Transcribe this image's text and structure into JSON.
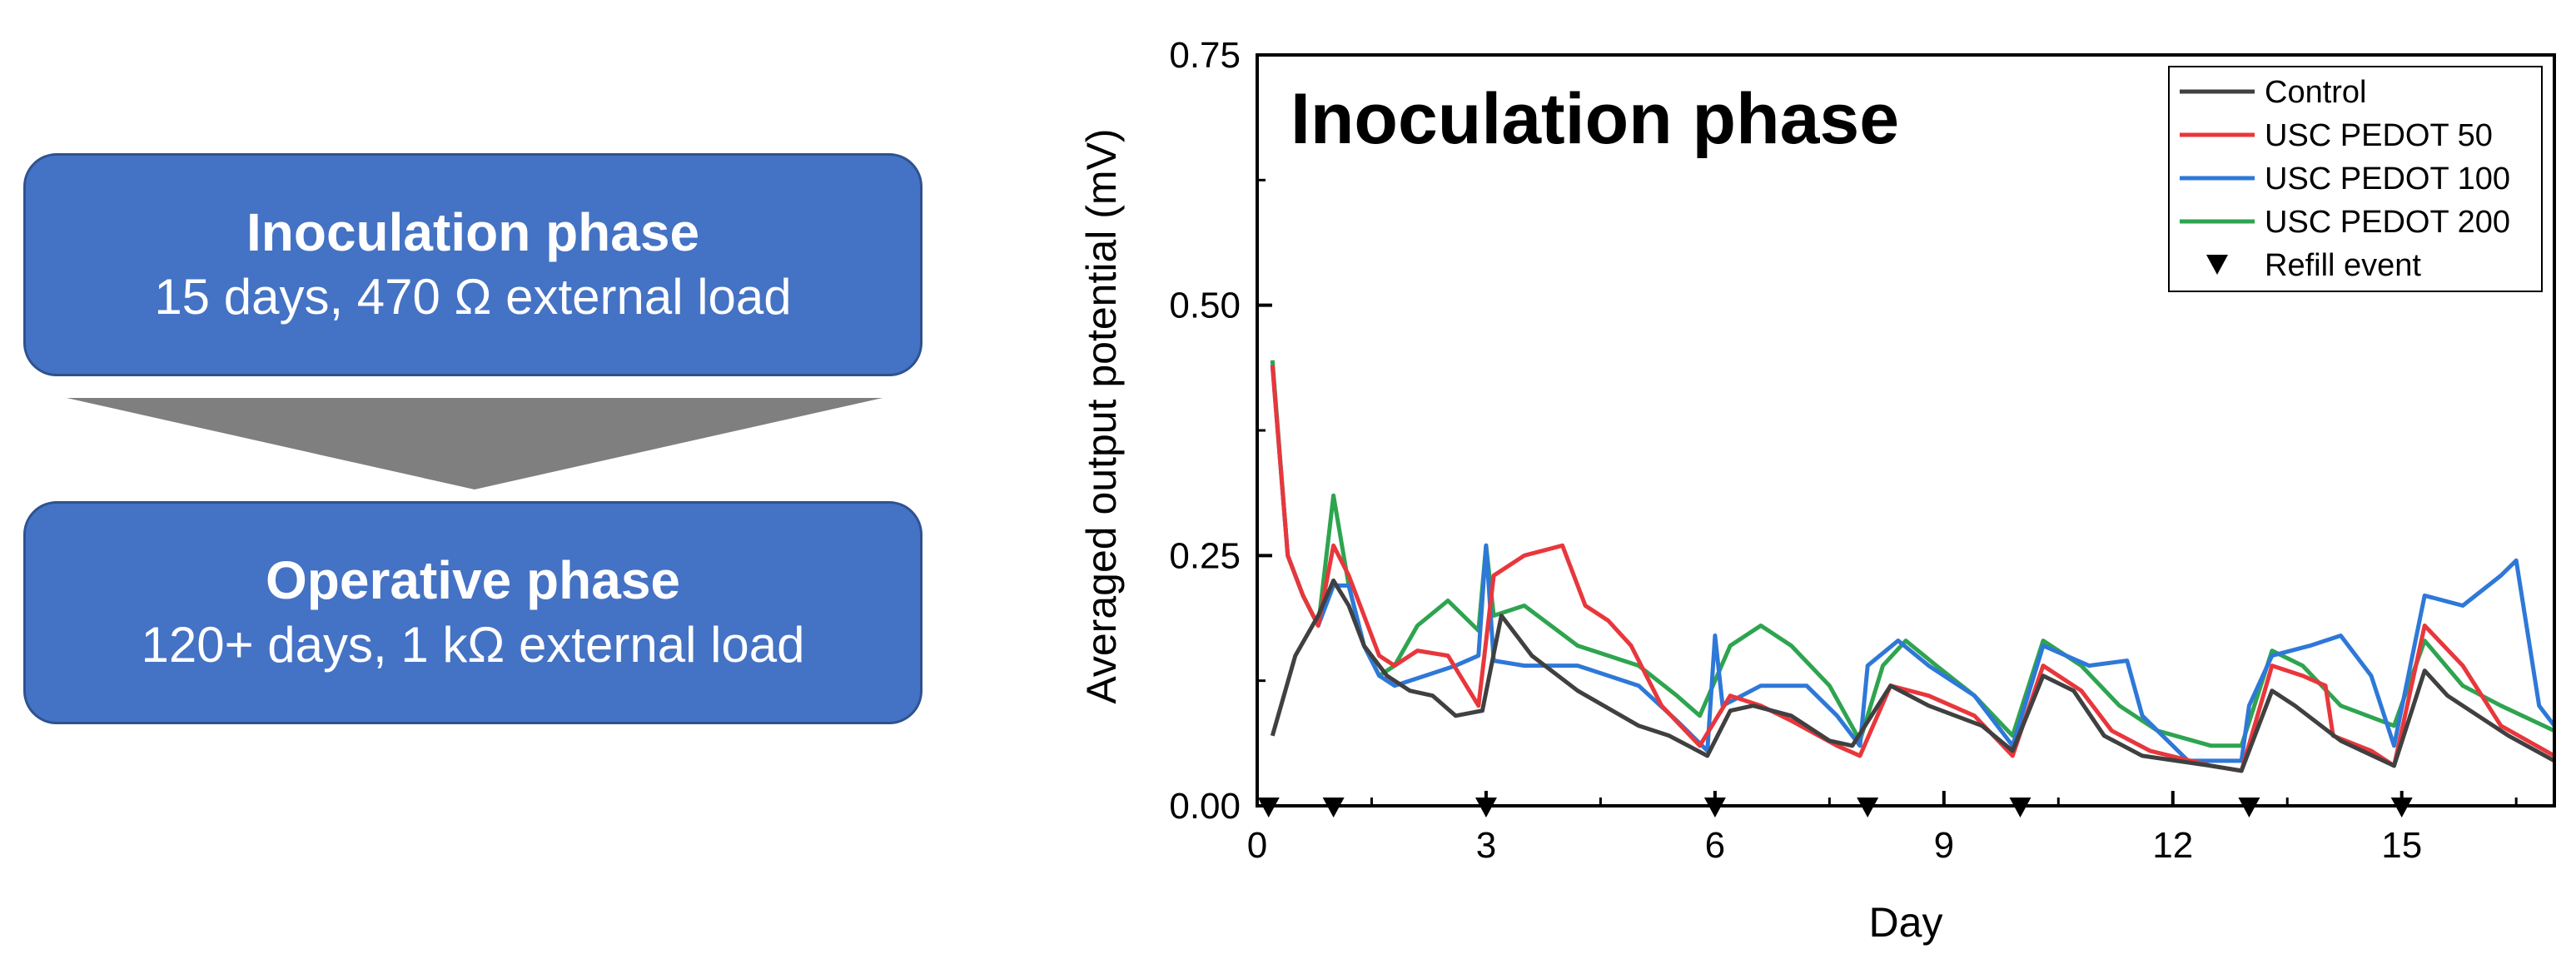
{
  "flow": {
    "inoculation": {
      "title": "Inoculation phase",
      "desc": "15 days, 470 Ω external load"
    },
    "operative": {
      "title": "Operative phase",
      "desc": "120+ days, 1 kΩ external load"
    },
    "box_color": "#4472c4",
    "arrow_color": "#7f7f7f"
  },
  "chart_data": {
    "type": "line",
    "title": "Inoculation phase",
    "xlabel": "Day",
    "ylabel": "Averaged output potential (mV)",
    "xlim": [
      0,
      17
    ],
    "ylim": [
      0,
      0.75
    ],
    "xticks": [
      0,
      3,
      6,
      9,
      12,
      15
    ],
    "yticks": [
      0.0,
      0.25,
      0.5,
      0.75
    ],
    "xtick_labels": [
      "0",
      "3",
      "6",
      "9",
      "12",
      "15"
    ],
    "ytick_labels": [
      "0.00",
      "0.25",
      "0.50",
      "0.75"
    ],
    "grid": false,
    "legend": "top-right",
    "series": [
      {
        "name": "Control",
        "color": "#404040",
        "points": [
          [
            0.2,
            0.07
          ],
          [
            0.5,
            0.15
          ],
          [
            0.8,
            0.19
          ],
          [
            1.0,
            0.225
          ],
          [
            1.2,
            0.2
          ],
          [
            1.4,
            0.16
          ],
          [
            1.7,
            0.13
          ],
          [
            2.0,
            0.115
          ],
          [
            2.3,
            0.11
          ],
          [
            2.6,
            0.09
          ],
          [
            2.95,
            0.095
          ],
          [
            3.2,
            0.19
          ],
          [
            3.4,
            0.17
          ],
          [
            3.6,
            0.15
          ],
          [
            4.2,
            0.115
          ],
          [
            5.0,
            0.08
          ],
          [
            5.4,
            0.07
          ],
          [
            5.9,
            0.05
          ],
          [
            6.2,
            0.095
          ],
          [
            6.5,
            0.1
          ],
          [
            7.0,
            0.09
          ],
          [
            7.5,
            0.065
          ],
          [
            7.8,
            0.06
          ],
          [
            8.3,
            0.12
          ],
          [
            8.8,
            0.1
          ],
          [
            9.5,
            0.08
          ],
          [
            9.9,
            0.055
          ],
          [
            10.3,
            0.13
          ],
          [
            10.7,
            0.115
          ],
          [
            11.1,
            0.07
          ],
          [
            11.6,
            0.05
          ],
          [
            12.5,
            0.04
          ],
          [
            12.9,
            0.035
          ],
          [
            13.3,
            0.115
          ],
          [
            13.6,
            0.1
          ],
          [
            14.2,
            0.065
          ],
          [
            14.9,
            0.04
          ],
          [
            15.3,
            0.135
          ],
          [
            15.6,
            0.11
          ],
          [
            16.0,
            0.09
          ],
          [
            16.4,
            0.07
          ],
          [
            17.0,
            0.045
          ]
        ]
      },
      {
        "name": "USC PEDOT 50",
        "color": "#e8373c",
        "points": [
          [
            0.2,
            0.44
          ],
          [
            0.4,
            0.25
          ],
          [
            0.6,
            0.21
          ],
          [
            0.8,
            0.18
          ],
          [
            1.0,
            0.26
          ],
          [
            1.2,
            0.23
          ],
          [
            1.4,
            0.19
          ],
          [
            1.6,
            0.15
          ],
          [
            1.8,
            0.14
          ],
          [
            2.1,
            0.155
          ],
          [
            2.5,
            0.15
          ],
          [
            2.9,
            0.1
          ],
          [
            3.1,
            0.23
          ],
          [
            3.5,
            0.25
          ],
          [
            4.0,
            0.26
          ],
          [
            4.3,
            0.2
          ],
          [
            4.6,
            0.185
          ],
          [
            4.9,
            0.16
          ],
          [
            5.3,
            0.1
          ],
          [
            5.8,
            0.06
          ],
          [
            6.2,
            0.11
          ],
          [
            6.6,
            0.1
          ],
          [
            7.0,
            0.085
          ],
          [
            7.6,
            0.06
          ],
          [
            7.9,
            0.05
          ],
          [
            8.3,
            0.12
          ],
          [
            8.8,
            0.11
          ],
          [
            9.4,
            0.09
          ],
          [
            9.9,
            0.05
          ],
          [
            10.3,
            0.14
          ],
          [
            10.8,
            0.115
          ],
          [
            11.2,
            0.075
          ],
          [
            11.7,
            0.055
          ],
          [
            12.5,
            0.04
          ],
          [
            12.9,
            0.035
          ],
          [
            13.3,
            0.14
          ],
          [
            13.7,
            0.13
          ],
          [
            14.0,
            0.12
          ],
          [
            14.1,
            0.07
          ],
          [
            14.6,
            0.055
          ],
          [
            14.9,
            0.04
          ],
          [
            15.3,
            0.18
          ],
          [
            15.8,
            0.14
          ],
          [
            16.3,
            0.08
          ],
          [
            17.0,
            0.05
          ]
        ]
      },
      {
        "name": "USC PEDOT 100",
        "color": "#2e78d8",
        "points": [
          [
            0.2,
            0.44
          ],
          [
            0.4,
            0.25
          ],
          [
            0.6,
            0.21
          ],
          [
            0.8,
            0.18
          ],
          [
            1.0,
            0.22
          ],
          [
            1.2,
            0.22
          ],
          [
            1.4,
            0.16
          ],
          [
            1.6,
            0.13
          ],
          [
            1.8,
            0.12
          ],
          [
            2.2,
            0.13
          ],
          [
            2.6,
            0.14
          ],
          [
            2.9,
            0.15
          ],
          [
            3.0,
            0.26
          ],
          [
            3.1,
            0.145
          ],
          [
            3.5,
            0.14
          ],
          [
            4.2,
            0.14
          ],
          [
            5.0,
            0.12
          ],
          [
            5.5,
            0.085
          ],
          [
            5.9,
            0.055
          ],
          [
            6.0,
            0.17
          ],
          [
            6.1,
            0.1
          ],
          [
            6.6,
            0.12
          ],
          [
            7.2,
            0.12
          ],
          [
            7.6,
            0.09
          ],
          [
            7.9,
            0.06
          ],
          [
            8.0,
            0.14
          ],
          [
            8.4,
            0.165
          ],
          [
            8.8,
            0.14
          ],
          [
            9.4,
            0.11
          ],
          [
            9.9,
            0.06
          ],
          [
            10.3,
            0.16
          ],
          [
            10.9,
            0.14
          ],
          [
            11.4,
            0.145
          ],
          [
            11.6,
            0.09
          ],
          [
            12.2,
            0.045
          ],
          [
            12.9,
            0.045
          ],
          [
            13.0,
            0.1
          ],
          [
            13.3,
            0.15
          ],
          [
            13.8,
            0.16
          ],
          [
            14.2,
            0.17
          ],
          [
            14.6,
            0.13
          ],
          [
            14.9,
            0.06
          ],
          [
            15.3,
            0.21
          ],
          [
            15.8,
            0.2
          ],
          [
            16.3,
            0.23
          ],
          [
            16.5,
            0.245
          ],
          [
            16.8,
            0.1
          ],
          [
            17.0,
            0.08
          ]
        ]
      },
      {
        "name": "USC PEDOT 200",
        "color": "#2ea44f",
        "points": [
          [
            0.2,
            0.445
          ],
          [
            0.4,
            0.25
          ],
          [
            0.6,
            0.21
          ],
          [
            0.8,
            0.18
          ],
          [
            1.0,
            0.31
          ],
          [
            1.2,
            0.22
          ],
          [
            1.4,
            0.16
          ],
          [
            1.6,
            0.13
          ],
          [
            1.8,
            0.14
          ],
          [
            2.1,
            0.18
          ],
          [
            2.5,
            0.205
          ],
          [
            2.9,
            0.175
          ],
          [
            3.0,
            0.26
          ],
          [
            3.1,
            0.19
          ],
          [
            3.5,
            0.2
          ],
          [
            4.2,
            0.16
          ],
          [
            5.0,
            0.14
          ],
          [
            5.5,
            0.11
          ],
          [
            5.8,
            0.09
          ],
          [
            6.2,
            0.16
          ],
          [
            6.6,
            0.18
          ],
          [
            7.0,
            0.16
          ],
          [
            7.5,
            0.12
          ],
          [
            7.9,
            0.065
          ],
          [
            8.2,
            0.14
          ],
          [
            8.5,
            0.165
          ],
          [
            8.9,
            0.14
          ],
          [
            9.4,
            0.11
          ],
          [
            9.9,
            0.07
          ],
          [
            10.3,
            0.165
          ],
          [
            10.8,
            0.14
          ],
          [
            11.3,
            0.1
          ],
          [
            11.8,
            0.075
          ],
          [
            12.5,
            0.06
          ],
          [
            12.9,
            0.06
          ],
          [
            13.3,
            0.155
          ],
          [
            13.7,
            0.14
          ],
          [
            14.2,
            0.1
          ],
          [
            14.9,
            0.08
          ],
          [
            15.3,
            0.165
          ],
          [
            15.8,
            0.12
          ],
          [
            16.3,
            0.1
          ],
          [
            17.0,
            0.075
          ]
        ]
      }
    ],
    "refill_events": {
      "name": "Refill event",
      "days": [
        0.15,
        1.0,
        3.0,
        6.0,
        8.0,
        10.0,
        13.0,
        15.0
      ],
      "y": 0.0
    }
  }
}
